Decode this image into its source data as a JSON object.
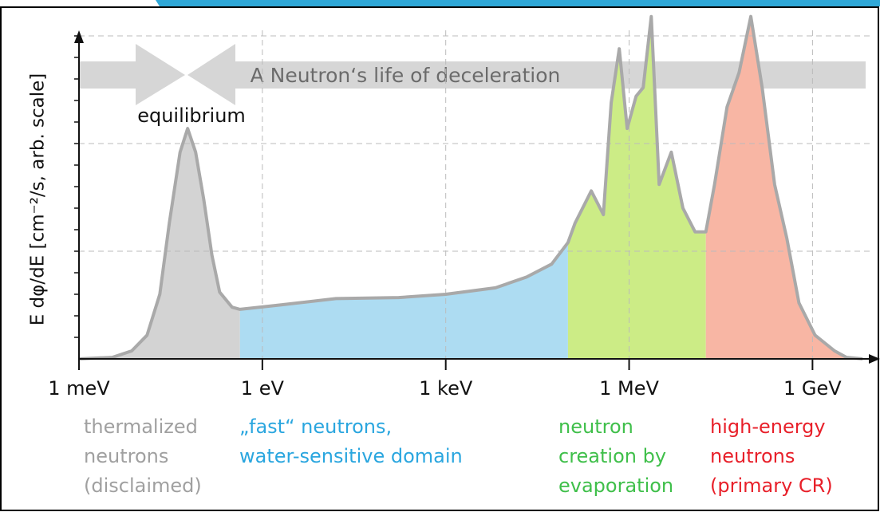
{
  "chart_data": {
    "type": "area",
    "y_label": "E dφ/dE [cm⁻²/s, arb. scale]",
    "annotations": [
      "A Neutron‘s life of deceleration",
      "equilibrium"
    ],
    "xscale": "log",
    "xlim": [
      0.001,
      10000000000
    ],
    "xticks": [
      {
        "value": 0.001,
        "label": "1 meV"
      },
      {
        "value": 1,
        "label": "1 eV"
      },
      {
        "value": 1000,
        "label": "1 keV"
      },
      {
        "value": 1000000,
        "label": "1 MeV"
      },
      {
        "value": 1000000000,
        "label": "1 GeV"
      }
    ],
    "ylim": [
      0,
      16
    ],
    "yticks": [
      1,
      2,
      3,
      4,
      5,
      6,
      7,
      8,
      9,
      10,
      11,
      12,
      13,
      14,
      15
    ],
    "grid": true,
    "line_color": "#a9a9a9",
    "x": [
      0.001,
      0.0035,
      0.0073,
      0.013,
      0.021,
      0.03,
      0.045,
      0.06,
      0.081,
      0.11,
      0.15,
      0.2,
      0.32,
      0.43,
      1.9,
      16,
      170,
      1000,
      6500,
      21000,
      54000,
      100000,
      130000,
      240000,
      380000,
      510000,
      690000,
      930000,
      1300000,
      1700000,
      2300000,
      3100000,
      4900000,
      7600000,
      12000000,
      18000000,
      25000000,
      40000000,
      63000000,
      98000000,
      150000000,
      240000000,
      380000000,
      600000000,
      1100000000,
      2300000000,
      3600000000,
      6600000000
    ],
    "values": [
      0,
      0.07,
      0.37,
      1.1,
      3.0,
      6.3,
      9.6,
      10.7,
      9.6,
      7.4,
      4.8,
      3.1,
      2.4,
      2.3,
      2.5,
      2.8,
      2.85,
      3.0,
      3.3,
      3.8,
      4.4,
      5.4,
      6.3,
      7.8,
      6.7,
      11.9,
      14.4,
      10.7,
      12.2,
      12.6,
      15.9,
      8.1,
      9.6,
      7.0,
      5.9,
      5.9,
      8.1,
      11.7,
      13.3,
      15.9,
      12.6,
      8.1,
      5.6,
      2.6,
      1.1,
      0.37,
      0.07,
      0
    ],
    "regions": [
      {
        "from": 0.001,
        "to": 0.43,
        "color": "#d3d3d3",
        "label_color": "#a0a0a0",
        "label": [
          "thermalized",
          "neutrons",
          "(disclaimed)"
        ]
      },
      {
        "from": 0.43,
        "to": 100000,
        "color": "#addcf2",
        "label_color": "#2aa6df",
        "label": [
          "„fast“ neutrons,",
          "water-sensitive domain"
        ]
      },
      {
        "from": 100000,
        "to": 18000000,
        "color": "#ccec86",
        "label_color": "#3fbf4a",
        "label": [
          "neutron",
          "creation by",
          "evaporation"
        ]
      },
      {
        "from": 18000000,
        "to": 10000000000,
        "color": "#f8b6a4",
        "label_color": "#e8202a",
        "label": [
          "high-energy",
          "neutrons",
          "(primary CR)"
        ]
      }
    ]
  }
}
